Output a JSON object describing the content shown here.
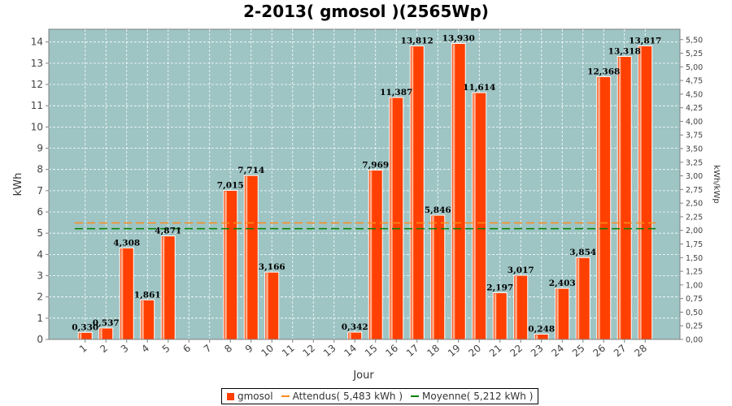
{
  "chart_data": {
    "type": "bar",
    "title": "2-2013( gmosol )(2565Wp)",
    "xlabel": "Jour",
    "ylabel": "kWh",
    "y2label": "kWh/kWp",
    "categories": [
      "1",
      "2",
      "3",
      "4",
      "5",
      "6",
      "7",
      "8",
      "9",
      "10",
      "11",
      "12",
      "13",
      "14",
      "15",
      "16",
      "17",
      "18",
      "19",
      "20",
      "21",
      "22",
      "23",
      "24",
      "25",
      "26",
      "27",
      "28"
    ],
    "series": [
      {
        "name": "gmosol",
        "color": "#ff4000",
        "values": [
          0.33,
          0.537,
          4.308,
          1.861,
          4.871,
          null,
          null,
          7.015,
          7.714,
          3.166,
          null,
          null,
          null,
          0.342,
          7.969,
          11.387,
          13.812,
          5.846,
          13.93,
          11.614,
          2.197,
          3.017,
          0.248,
          2.403,
          3.854,
          12.368,
          13.318,
          13.817
        ],
        "labels": [
          "0,330",
          "0,537",
          "4,308",
          "1,861",
          "4,871",
          "",
          "",
          "7,015",
          "7,714",
          "3,166",
          "",
          "",
          "",
          "0,342",
          "7,969",
          "11,387",
          "13,812",
          "5,846",
          "13,930",
          "11,614",
          "2,197",
          "3,017",
          "0,248",
          "2,403",
          "3,854",
          "12,368",
          "13,318",
          "13,817"
        ]
      }
    ],
    "reference_lines": [
      {
        "name": "Attendus( 5,483 kWh )",
        "value": 5.483,
        "color": "#ff8c1a",
        "style": "dashed"
      },
      {
        "name": "Moyenne( 5,212 kWh )",
        "value": 5.212,
        "color": "#008000",
        "style": "dashed"
      }
    ],
    "ylim": [
      0,
      14.6
    ],
    "yticks": [
      0,
      1,
      2,
      3,
      4,
      5,
      6,
      7,
      8,
      9,
      10,
      11,
      12,
      13,
      14
    ],
    "y2lim": [
      0,
      5.69
    ],
    "y2ticks": [
      "0,00",
      "0,25",
      "0,50",
      "0,75",
      "1,00",
      "1,25",
      "1,50",
      "1,75",
      "2,00",
      "2,25",
      "2,50",
      "2,75",
      "3,00",
      "3,25",
      "3,50",
      "3,75",
      "4,00",
      "4,25",
      "4,50",
      "4,75",
      "5,00",
      "5,25",
      "5,50"
    ],
    "y2tick_values": [
      0,
      0.25,
      0.5,
      0.75,
      1,
      1.25,
      1.5,
      1.75,
      2,
      2.25,
      2.5,
      2.75,
      3,
      3.25,
      3.5,
      3.75,
      4,
      4.25,
      4.5,
      4.75,
      5,
      5.25,
      5.5
    ],
    "grid": true,
    "plot_background": "#9ec4c4",
    "legend_position": "bottom"
  },
  "legend": {
    "series_label": "gmosol",
    "expected_label": "Attendus( 5,483 kWh )",
    "average_label": "Moyenne( 5,212 kWh )"
  }
}
